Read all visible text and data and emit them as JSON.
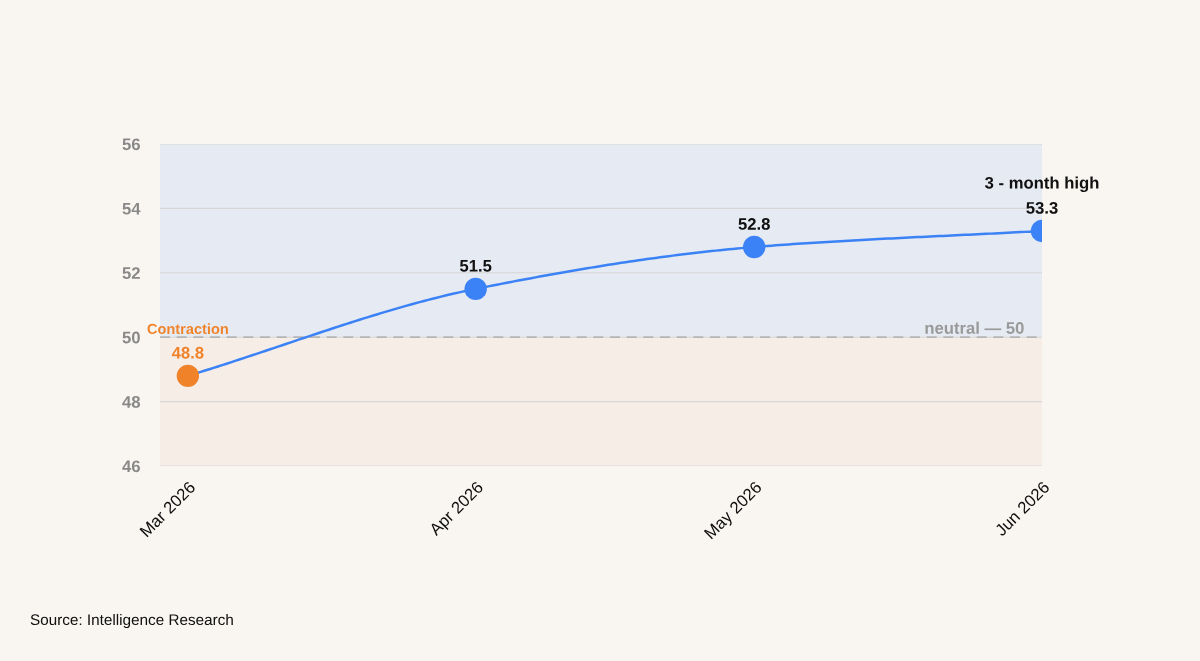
{
  "chart_data": {
    "type": "line",
    "x": [
      "2026-03",
      "2026-04",
      "2026-05",
      "2026-06"
    ],
    "series": [
      {
        "color": "#3b82f6",
        "colors": [
          "#f0832a",
          "#3b82f6",
          "#3b82f6",
          "#3b82f6"
        ],
        "values": [
          48.8,
          51.5,
          52.8,
          53.3
        ]
      }
    ],
    "xlim": [
      "2026-02-26",
      "2026-06-01"
    ],
    "xticks": [
      {
        "value": "2026-03",
        "label": "Mar 2026"
      },
      {
        "value": "2026-04",
        "label": "Apr 2026"
      },
      {
        "value": "2026-05",
        "label": "May 2026"
      },
      {
        "value": "2026-06",
        "label": "Jun 2026"
      }
    ],
    "ylim": [
      46,
      56
    ],
    "yticks": [
      46,
      48,
      50,
      52,
      54,
      56
    ],
    "grid": "y",
    "marker": "circle",
    "line_style": "solid",
    "data_labels": true,
    "legend": false,
    "ref_lines": [
      {
        "axis": "y",
        "value": 50,
        "label": "neutral — 50",
        "color": "#b5b5b5",
        "line_style": "dashed"
      }
    ],
    "bands": [
      {
        "axis": "y",
        "from": 50,
        "to": 56,
        "color": "#e6eaf2"
      },
      {
        "axis": "y",
        "from": 46,
        "to": 50,
        "color": "#f6ede7"
      }
    ],
    "annotations": [
      {
        "text": "Contraction",
        "x": "2026-03",
        "y": 48.8
      },
      {
        "text": "3 - month high",
        "x": "2026-06",
        "y": 53.3
      },
      "Source: Intelligence Research"
    ]
  }
}
